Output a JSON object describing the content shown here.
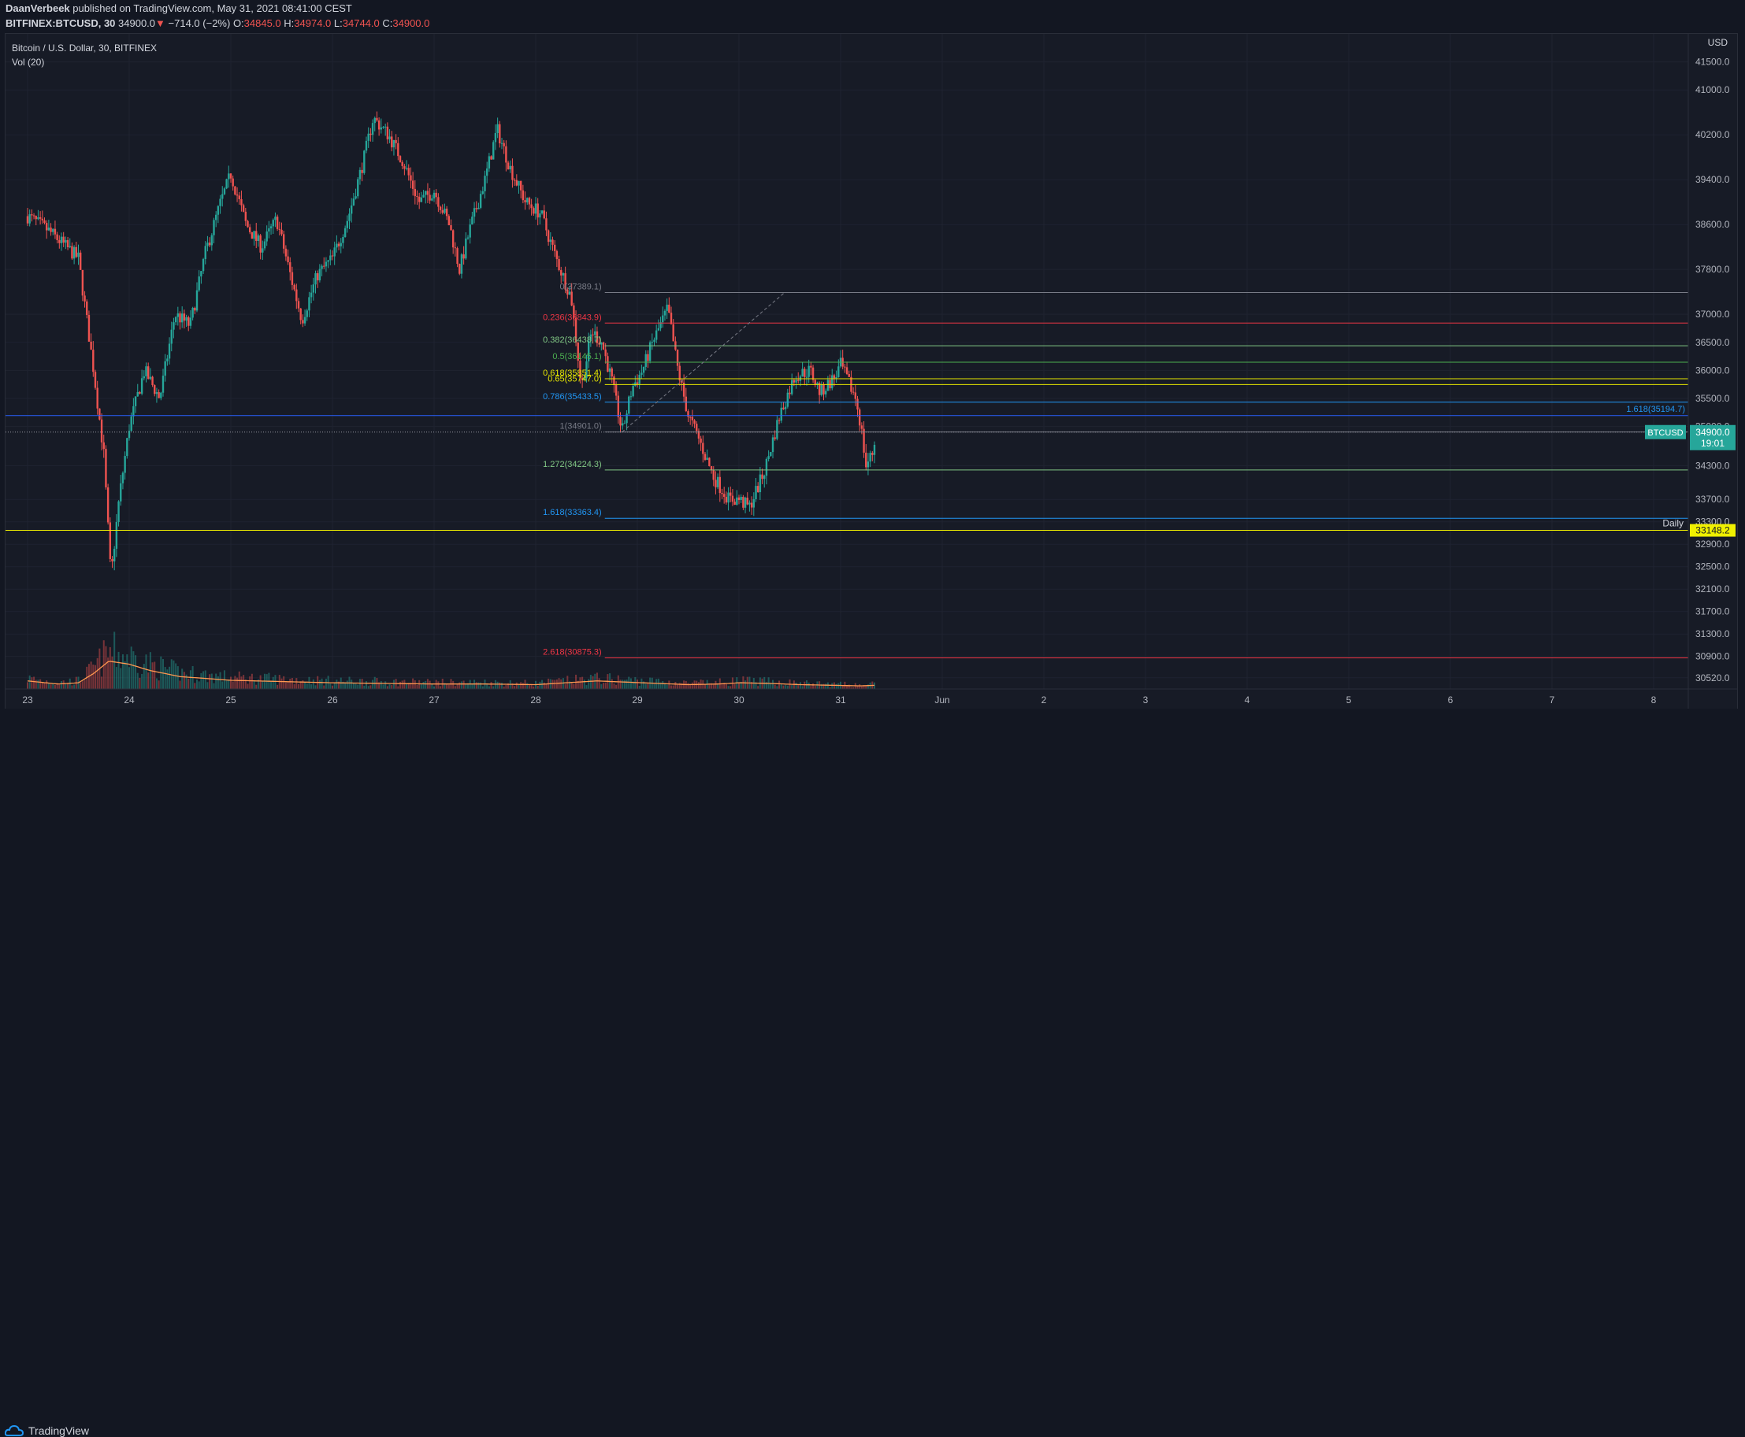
{
  "header": {
    "author": "DaanVerbeek",
    "published": " published on TradingView.com, May 31, 2021 08:41:00 CEST",
    "symbol": "BITFINEX:BTCUSD, 30",
    "last": "34900.0",
    "arrow": "▼",
    "change": "−714.0 (−2%)",
    "o_label": "O:",
    "o": "34845.0",
    "h_label": "H:",
    "h": "34974.0",
    "l_label": "L:",
    "l": "34744.0",
    "c_label": "C:",
    "c": "34900.0"
  },
  "footer": {
    "brand": "TradingView"
  },
  "chart_data": {
    "type": "candlestick",
    "title": "Bitcoin / U.S. Dollar, 30, BITFINEX",
    "indicator": "Vol (20)",
    "currency": "USD",
    "ylim": [
      30320,
      42000
    ],
    "x_labels": [
      "23",
      "24",
      "25",
      "26",
      "27",
      "28",
      "29",
      "30",
      "31",
      "Jun",
      "2",
      "3",
      "4",
      "5",
      "6",
      "7",
      "8"
    ],
    "y_ticks": [
      41500.0,
      41000.0,
      40200.0,
      39400.0,
      38600.0,
      37800.0,
      37000.0,
      36500.0,
      36000.0,
      35500.0,
      35000.0,
      34300.0,
      33700.0,
      33300.0,
      32900.0,
      32500.0,
      32100.0,
      31700.0,
      31300.0,
      30900.0,
      30520.0
    ],
    "y_tick_labels": [
      "41500.0",
      "41000.0",
      "40200.0",
      "39400.0",
      "38600.0",
      "37800.0",
      "37000.0",
      "36500.0",
      "36000.0",
      "35500.0",
      "35000.0",
      "34300.0",
      "33700.0",
      "33300.0",
      "32900.0",
      "32500.0",
      "32100.0",
      "31700.0",
      "31300.0",
      "30900.0",
      "30520.0"
    ],
    "path": [
      [
        23.0,
        38750
      ],
      [
        23.2,
        38500
      ],
      [
        23.5,
        38000
      ],
      [
        23.65,
        36000
      ],
      [
        23.75,
        34500
      ],
      [
        23.82,
        32300
      ],
      [
        23.9,
        33700
      ],
      [
        24.0,
        35000
      ],
      [
        24.15,
        36000
      ],
      [
        24.3,
        35500
      ],
      [
        24.45,
        37000
      ],
      [
        24.6,
        36800
      ],
      [
        24.75,
        38100
      ],
      [
        24.9,
        39000
      ],
      [
        25.0,
        39500
      ],
      [
        25.15,
        38600
      ],
      [
        25.3,
        38200
      ],
      [
        25.45,
        38700
      ],
      [
        25.6,
        37600
      ],
      [
        25.7,
        36900
      ],
      [
        25.85,
        37700
      ],
      [
        26.0,
        38000
      ],
      [
        26.15,
        38700
      ],
      [
        26.3,
        39700
      ],
      [
        26.4,
        40500
      ],
      [
        26.55,
        40200
      ],
      [
        26.7,
        39700
      ],
      [
        26.85,
        39000
      ],
      [
        27.0,
        39200
      ],
      [
        27.15,
        38600
      ],
      [
        27.25,
        37800
      ],
      [
        27.35,
        38500
      ],
      [
        27.5,
        39400
      ],
      [
        27.62,
        40300
      ],
      [
        27.75,
        39600
      ],
      [
        27.9,
        39000
      ],
      [
        28.05,
        38800
      ],
      [
        28.2,
        38000
      ],
      [
        28.35,
        37300
      ],
      [
        28.45,
        35700
      ],
      [
        28.55,
        36700
      ],
      [
        28.65,
        36500
      ],
      [
        28.75,
        35800
      ],
      [
        28.85,
        34900
      ],
      [
        28.95,
        35700
      ],
      [
        29.05,
        36000
      ],
      [
        29.15,
        36500
      ],
      [
        29.3,
        37100
      ],
      [
        29.4,
        36000
      ],
      [
        29.5,
        35200
      ],
      [
        29.6,
        34800
      ],
      [
        29.75,
        34100
      ],
      [
        29.9,
        33700
      ],
      [
        30.0,
        33700
      ],
      [
        30.1,
        33550
      ],
      [
        30.25,
        34200
      ],
      [
        30.4,
        35200
      ],
      [
        30.55,
        35900
      ],
      [
        30.7,
        36000
      ],
      [
        30.8,
        35600
      ],
      [
        30.95,
        35900
      ],
      [
        31.0,
        36100
      ],
      [
        31.15,
        35500
      ],
      [
        31.2,
        35000
      ],
      [
        31.25,
        34300
      ],
      [
        31.32,
        34550
      ],
      [
        31.35,
        34900
      ]
    ],
    "volume": [
      [
        23.0,
        0.13
      ],
      [
        23.3,
        0.08
      ],
      [
        23.5,
        0.1
      ],
      [
        23.65,
        0.25
      ],
      [
        23.8,
        0.45
      ],
      [
        24.0,
        0.4
      ],
      [
        24.2,
        0.3
      ],
      [
        24.5,
        0.2
      ],
      [
        25.0,
        0.14
      ],
      [
        25.5,
        0.12
      ],
      [
        26.0,
        0.1
      ],
      [
        26.5,
        0.09
      ],
      [
        27.0,
        0.08
      ],
      [
        27.5,
        0.08
      ],
      [
        28.0,
        0.07
      ],
      [
        28.3,
        0.1
      ],
      [
        28.6,
        0.13
      ],
      [
        28.9,
        0.11
      ],
      [
        29.2,
        0.09
      ],
      [
        29.5,
        0.07
      ],
      [
        29.8,
        0.08
      ],
      [
        30.0,
        0.1
      ],
      [
        30.3,
        0.09
      ],
      [
        30.6,
        0.07
      ],
      [
        30.9,
        0.06
      ],
      [
        31.2,
        0.05
      ],
      [
        31.35,
        0.06
      ]
    ],
    "fib_retracement": [
      {
        "level": "0",
        "price": 37389.1,
        "label": "0(37389.1)",
        "color": "#787b86"
      },
      {
        "level": "0.236",
        "price": 36843.9,
        "label": "0.236(36843.9)",
        "color": "#f23645"
      },
      {
        "level": "0.382",
        "price": 36438.7,
        "label": "0.382(36438.7)",
        "color": "#81c784"
      },
      {
        "level": "0.5",
        "price": 36145.1,
        "label": "0.5(36145.1)",
        "color": "#4caf50"
      },
      {
        "level": "0.618",
        "price": 35851.4,
        "label": "0.618(35851.4)",
        "color": "#e6e600"
      },
      {
        "level": "0.65",
        "price": 35747.0,
        "label": "0.65(35747.0)",
        "color": "#e6e600"
      },
      {
        "level": "0.786",
        "price": 35433.5,
        "label": "0.786(35433.5)",
        "color": "#2196f3"
      },
      {
        "level": "1",
        "price": 34901.0,
        "label": "1(34901.0)",
        "color": "#787b86"
      },
      {
        "level": "1.272",
        "price": 34224.3,
        "label": "1.272(34224.3)",
        "color": "#81c784"
      },
      {
        "level": "1.618",
        "price": 33363.4,
        "label": "1.618(33363.4)",
        "color": "#2196f3"
      },
      {
        "level": "2.618",
        "price": 30875.3,
        "label": "2.618(30875.3)",
        "color": "#f23645"
      }
    ],
    "hlines": [
      {
        "price": 35194.7,
        "label": "1.618(35194.7)",
        "color": "#2962ff"
      },
      {
        "price": 33148.2,
        "label": "Daily",
        "price_label": "33148.2",
        "color": "#f0f000"
      }
    ],
    "last_price": {
      "symbol": "BTCUSD",
      "price": 34900.0,
      "price_label": "34900.0",
      "countdown": "19:01",
      "color": "#26a69a"
    }
  }
}
